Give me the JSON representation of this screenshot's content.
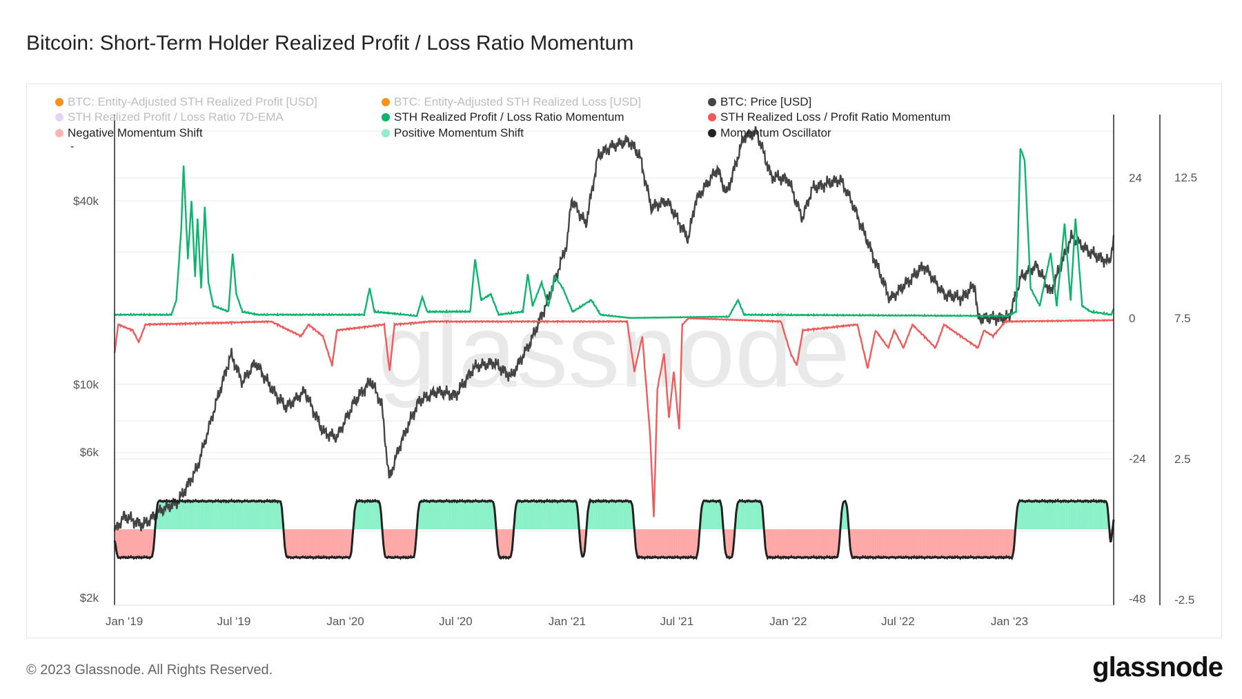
{
  "title": "Bitcoin: Short-Term Holder Realized Profit / Loss Ratio Momentum",
  "legend": [
    {
      "label": "BTC: Entity-Adjusted STH Realized Profit [USD]",
      "color": "#f7931a",
      "muted": true
    },
    {
      "label": "BTC: Entity-Adjusted STH Realized Loss [USD]",
      "color": "#f7931a",
      "muted": true
    },
    {
      "label": "BTC: Price [USD]",
      "color": "#444444",
      "muted": false
    },
    {
      "label": "STH Realized Profit / Loss Ratio 7D-EMA",
      "color": "#e3d4f7",
      "muted": true
    },
    {
      "label": "STH Realized Profit / Loss Ratio Momentum",
      "color": "#0bb56b",
      "muted": false
    },
    {
      "label": "STH Realized Loss / Profit Ratio Momentum",
      "color": "#f05a5a",
      "muted": false
    },
    {
      "label": "Negative Momentum Shift",
      "color": "#ffb3b3",
      "muted": false
    },
    {
      "label": "Positive Momentum Shift",
      "color": "#8ef0c8",
      "muted": false
    },
    {
      "label": "Momentum Oscillator",
      "color": "#222222",
      "muted": false
    }
  ],
  "legend_extra": "-",
  "watermark": "glassnode",
  "footer": "© 2023 Glassnode. All Rights Reserved.",
  "logo": "glassnode",
  "chart_data": {
    "type": "line",
    "x_range": [
      "2018-12-16",
      "2023-06-22"
    ],
    "x_ticks": [
      "Jan '19",
      "Jul '19",
      "Jan '20",
      "Jul '20",
      "Jan '21",
      "Jul '21",
      "Jan '22",
      "Jul '22",
      "Jan '23"
    ],
    "x_tick_dates": [
      "2019-01-01",
      "2019-07-01",
      "2020-01-01",
      "2020-07-01",
      "2021-01-01",
      "2021-07-01",
      "2022-01-01",
      "2022-07-01",
      "2023-01-01"
    ],
    "axes": {
      "price": {
        "scale": "log",
        "ticks": [
          "$2k",
          "$6k",
          "$10k",
          "$40k"
        ],
        "tick_values": [
          2000,
          6000,
          10000,
          40000
        ],
        "range": [
          2000,
          70000
        ]
      },
      "momentum": {
        "ticks": [
          "24",
          "0",
          "-24",
          "-48"
        ],
        "tick_values": [
          24,
          0,
          -24,
          -48
        ],
        "range": [
          -48,
          35
        ]
      },
      "oscillator": {
        "ticks": [
          "12.5",
          "7.5",
          "2.5",
          "-2.5"
        ],
        "tick_values": [
          12.5,
          7.5,
          2.5,
          -2.5
        ],
        "range": [
          -2.5,
          12.5
        ]
      }
    },
    "grid": true,
    "legend_position": "top-left",
    "series": [
      {
        "name": "BTC: Price [USD]",
        "axis": "price",
        "color": "#444444",
        "points": [
          [
            "2018-12-16",
            3300
          ],
          [
            "2019-01-01",
            3700
          ],
          [
            "2019-02-01",
            3450
          ],
          [
            "2019-03-01",
            3850
          ],
          [
            "2019-04-01",
            4150
          ],
          [
            "2019-05-01",
            5300
          ],
          [
            "2019-06-01",
            8600
          ],
          [
            "2019-06-26",
            12500
          ],
          [
            "2019-07-15",
            10200
          ],
          [
            "2019-08-06",
            11800
          ],
          [
            "2019-09-01",
            9700
          ],
          [
            "2019-09-25",
            8400
          ],
          [
            "2019-10-26",
            9500
          ],
          [
            "2019-11-25",
            7000
          ],
          [
            "2019-12-18",
            6700
          ],
          [
            "2020-01-15",
            8700
          ],
          [
            "2020-02-12",
            10300
          ],
          [
            "2020-03-01",
            8600
          ],
          [
            "2020-03-13",
            4900
          ],
          [
            "2020-04-01",
            6400
          ],
          [
            "2020-05-01",
            8800
          ],
          [
            "2020-06-01",
            9500
          ],
          [
            "2020-07-01",
            9200
          ],
          [
            "2020-08-01",
            11400
          ],
          [
            "2020-09-01",
            11800
          ],
          [
            "2020-10-01",
            10600
          ],
          [
            "2020-11-01",
            13700
          ],
          [
            "2020-12-01",
            19000
          ],
          [
            "2021-01-01",
            29000
          ],
          [
            "2021-01-08",
            40500
          ],
          [
            "2021-02-01",
            33500
          ],
          [
            "2021-02-21",
            56000
          ],
          [
            "2021-03-13",
            60000
          ],
          [
            "2021-04-13",
            63000
          ],
          [
            "2021-05-01",
            56000
          ],
          [
            "2021-05-20",
            38000
          ],
          [
            "2021-06-15",
            40000
          ],
          [
            "2021-07-20",
            30000
          ],
          [
            "2021-08-01",
            40000
          ],
          [
            "2021-09-06",
            51000
          ],
          [
            "2021-09-21",
            42000
          ],
          [
            "2021-10-20",
            65000
          ],
          [
            "2021-11-10",
            67000
          ],
          [
            "2021-12-04",
            48000
          ],
          [
            "2022-01-01",
            47000
          ],
          [
            "2022-01-24",
            35000
          ],
          [
            "2022-02-10",
            44000
          ],
          [
            "2022-03-28",
            47000
          ],
          [
            "2022-04-15",
            40000
          ],
          [
            "2022-05-10",
            30000
          ],
          [
            "2022-06-18",
            19000
          ],
          [
            "2022-07-10",
            21000
          ],
          [
            "2022-08-13",
            24500
          ],
          [
            "2022-09-15",
            19700
          ],
          [
            "2022-10-15",
            19200
          ],
          [
            "2022-11-05",
            21200
          ],
          [
            "2022-11-10",
            16500
          ],
          [
            "2022-12-31",
            16500
          ],
          [
            "2023-01-20",
            22500
          ],
          [
            "2023-02-15",
            24500
          ],
          [
            "2023-03-10",
            20000
          ],
          [
            "2023-04-13",
            30500
          ],
          [
            "2023-05-15",
            27000
          ],
          [
            "2023-06-15",
            25100
          ],
          [
            "2023-06-22",
            30000
          ]
        ]
      },
      {
        "name": "STH Realized Profit / Loss Ratio Momentum",
        "axis": "momentum",
        "color": "#0bb56b",
        "points": [
          [
            "2018-12-16",
            0.5
          ],
          [
            "2019-03-20",
            0.5
          ],
          [
            "2019-03-28",
            3
          ],
          [
            "2019-04-05",
            15
          ],
          [
            "2019-04-09",
            26
          ],
          [
            "2019-04-16",
            10
          ],
          [
            "2019-04-22",
            20
          ],
          [
            "2019-04-28",
            7
          ],
          [
            "2019-05-02",
            17
          ],
          [
            "2019-05-08",
            5
          ],
          [
            "2019-05-14",
            19
          ],
          [
            "2019-05-20",
            6
          ],
          [
            "2019-05-28",
            2
          ],
          [
            "2019-06-22",
            1
          ],
          [
            "2019-06-29",
            11
          ],
          [
            "2019-07-05",
            4
          ],
          [
            "2019-07-15",
            1
          ],
          [
            "2019-08-10",
            0.5
          ],
          [
            "2020-02-01",
            0.5
          ],
          [
            "2020-02-10",
            5
          ],
          [
            "2020-02-18",
            1
          ],
          [
            "2020-04-28",
            0.3
          ],
          [
            "2020-05-07",
            3.5
          ],
          [
            "2020-05-15",
            1
          ],
          [
            "2020-07-25",
            1
          ],
          [
            "2020-08-02",
            10
          ],
          [
            "2020-08-12",
            3
          ],
          [
            "2020-08-28",
            4
          ],
          [
            "2020-09-10",
            0.5
          ],
          [
            "2020-10-20",
            1
          ],
          [
            "2020-10-28",
            7.5
          ],
          [
            "2020-11-05",
            2
          ],
          [
            "2020-11-20",
            6
          ],
          [
            "2020-12-01",
            2
          ],
          [
            "2020-12-12",
            7
          ],
          [
            "2020-12-25",
            5
          ],
          [
            "2021-01-10",
            1
          ],
          [
            "2021-02-10",
            3
          ],
          [
            "2021-02-25",
            0.5
          ],
          [
            "2021-04-15",
            0
          ],
          [
            "2021-09-25",
            0.2
          ],
          [
            "2021-10-10",
            3
          ],
          [
            "2021-10-20",
            0.5
          ],
          [
            "2022-12-30",
            0.3
          ],
          [
            "2023-01-12",
            1
          ],
          [
            "2023-01-19",
            29
          ],
          [
            "2023-01-26",
            27
          ],
          [
            "2023-02-05",
            5
          ],
          [
            "2023-02-20",
            2
          ],
          [
            "2023-03-10",
            11
          ],
          [
            "2023-03-20",
            2
          ],
          [
            "2023-04-02",
            16
          ],
          [
            "2023-04-12",
            3
          ],
          [
            "2023-04-20",
            17
          ],
          [
            "2023-05-01",
            2
          ],
          [
            "2023-05-15",
            1
          ],
          [
            "2023-06-18",
            0.5
          ],
          [
            "2023-06-22",
            1.5
          ]
        ]
      },
      {
        "name": "STH Realized Loss / Profit Ratio Momentum",
        "axis": "momentum",
        "color": "#f05a5a",
        "points": [
          [
            "2018-12-16",
            -6
          ],
          [
            "2018-12-22",
            -1
          ],
          [
            "2019-01-15",
            -2
          ],
          [
            "2019-01-25",
            -4
          ],
          [
            "2019-02-05",
            -1
          ],
          [
            "2019-09-01",
            -0.5
          ],
          [
            "2019-10-20",
            -3
          ],
          [
            "2019-11-01",
            -1
          ],
          [
            "2019-11-25",
            -3
          ],
          [
            "2019-12-10",
            -8
          ],
          [
            "2019-12-18",
            -2
          ],
          [
            "2020-03-05",
            -1
          ],
          [
            "2020-03-14",
            -9
          ],
          [
            "2020-03-22",
            -1
          ],
          [
            "2020-05-20",
            -0.5
          ],
          [
            "2021-04-10",
            -0.5
          ],
          [
            "2021-04-22",
            -9
          ],
          [
            "2021-05-05",
            -3
          ],
          [
            "2021-05-18",
            -20
          ],
          [
            "2021-05-24",
            -34
          ],
          [
            "2021-05-30",
            -12
          ],
          [
            "2021-06-10",
            -6
          ],
          [
            "2021-06-18",
            -17
          ],
          [
            "2021-06-26",
            -9
          ],
          [
            "2021-07-05",
            -19
          ],
          [
            "2021-07-10",
            -1
          ],
          [
            "2021-07-20",
            0
          ],
          [
            "2021-12-20",
            -0.5
          ],
          [
            "2022-01-05",
            -6
          ],
          [
            "2022-01-15",
            -8
          ],
          [
            "2022-01-25",
            -2
          ],
          [
            "2022-04-25",
            -1
          ],
          [
            "2022-05-12",
            -8.5
          ],
          [
            "2022-05-25",
            -2
          ],
          [
            "2022-06-15",
            -5
          ],
          [
            "2022-06-25",
            -2
          ],
          [
            "2022-07-10",
            -5
          ],
          [
            "2022-07-25",
            -1
          ],
          [
            "2022-09-01",
            -5
          ],
          [
            "2022-09-15",
            -1
          ],
          [
            "2022-11-10",
            -5
          ],
          [
            "2022-11-20",
            -2
          ],
          [
            "2022-12-05",
            -3
          ],
          [
            "2022-12-25",
            -0.5
          ],
          [
            "2023-06-22",
            -0.3
          ]
        ]
      },
      {
        "name": "Momentum Oscillator",
        "axis": "oscillator",
        "color": "#222222",
        "segments": [
          [
            "2018-12-16",
            "2019-02-20",
            -1
          ],
          [
            "2019-02-21",
            "2019-09-20",
            1
          ],
          [
            "2019-09-21",
            "2020-01-13",
            -1
          ],
          [
            "2020-01-14",
            "2020-03-01",
            1
          ],
          [
            "2020-03-02",
            "2020-04-27",
            -1
          ],
          [
            "2020-04-28",
            "2020-09-05",
            1
          ],
          [
            "2020-09-06",
            "2020-10-04",
            -1
          ],
          [
            "2020-10-05",
            "2021-01-20",
            1
          ],
          [
            "2021-01-21",
            "2021-02-01",
            -1
          ],
          [
            "2021-02-02",
            "2021-04-21",
            1
          ],
          [
            "2021-04-22",
            "2021-08-07",
            -1
          ],
          [
            "2021-08-08",
            "2021-09-15",
            1
          ],
          [
            "2021-09-16",
            "2021-10-04",
            -1
          ],
          [
            "2021-10-05",
            "2021-11-21",
            1
          ],
          [
            "2021-11-22",
            "2022-03-27",
            -1
          ],
          [
            "2022-03-28",
            "2022-04-10",
            1
          ],
          [
            "2022-04-11",
            "2023-01-10",
            -1
          ],
          [
            "2023-01-11",
            "2023-06-14",
            1
          ],
          [
            "2023-06-15",
            "2023-06-19",
            -1
          ],
          [
            "2023-06-20",
            "2023-06-22",
            1
          ]
        ]
      }
    ],
    "fills": {
      "positive": "Positive Momentum Shift",
      "negative": "Negative Momentum Shift"
    }
  }
}
